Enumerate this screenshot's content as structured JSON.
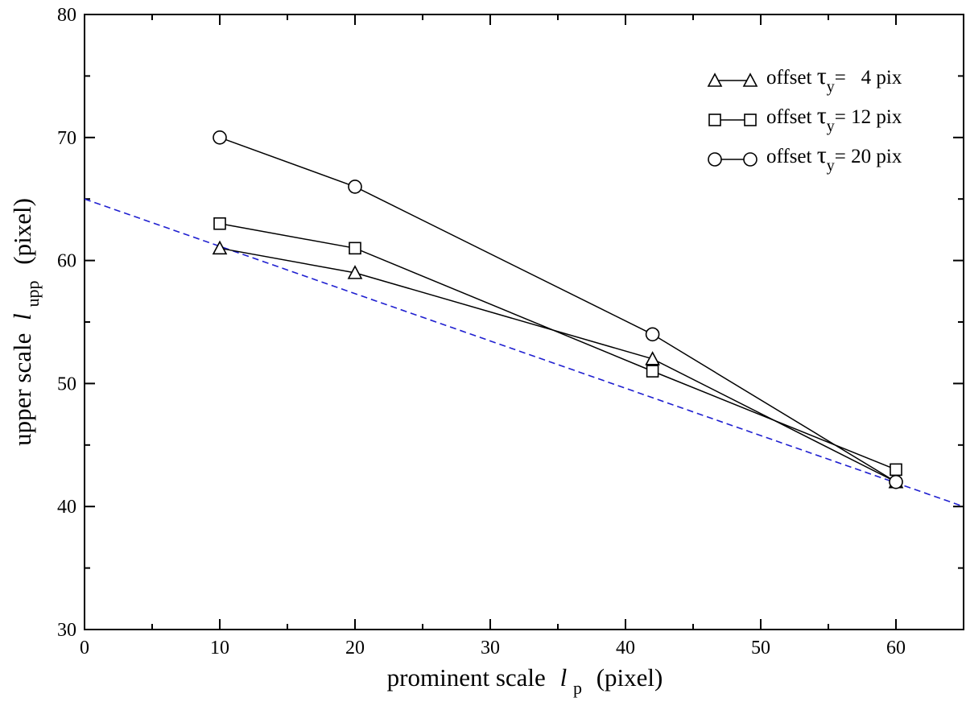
{
  "chart_data": {
    "type": "line",
    "xlabel": {
      "prefix": "prominent scale",
      "symbol": "l",
      "subscript": "p",
      "suffix": "(pixel)"
    },
    "ylabel": {
      "prefix": "upper scale",
      "symbol": "l",
      "subscript": "upp",
      "suffix": "(pixel)"
    },
    "xlim": [
      0,
      65
    ],
    "ylim": [
      30,
      80
    ],
    "x_ticks": [
      0,
      10,
      20,
      30,
      40,
      50,
      60
    ],
    "y_ticks": [
      30,
      40,
      50,
      60,
      70,
      80
    ],
    "x_minor_step": 5,
    "y_minor_step": 5,
    "grid": false,
    "legend_position": "top-right",
    "series": [
      {
        "name": "offset τy= 4 pix",
        "legend": {
          "prefix": "offset ",
          "tau": "τ",
          "sub": "y",
          "value": "=   4 pix"
        },
        "marker": "triangle",
        "color": "#000000",
        "x": [
          10,
          20,
          42,
          60
        ],
        "y": [
          61,
          59,
          52,
          42
        ]
      },
      {
        "name": "offset τy= 12 pix",
        "legend": {
          "prefix": "offset ",
          "tau": "τ",
          "sub": "y",
          "value": "= 12 pix"
        },
        "marker": "square",
        "color": "#000000",
        "x": [
          10,
          20,
          42,
          60
        ],
        "y": [
          63,
          61,
          51,
          43
        ]
      },
      {
        "name": "offset τy= 20 pix",
        "legend": {
          "prefix": "offset ",
          "tau": "τ",
          "sub": "y",
          "value": "= 20 pix"
        },
        "marker": "circle",
        "color": "#000000",
        "x": [
          10,
          20,
          42,
          60
        ],
        "y": [
          70,
          66,
          54,
          42
        ]
      }
    ],
    "reference_line": {
      "style": "dashed",
      "color": "#1f1fd0",
      "x": [
        0,
        65
      ],
      "y": [
        65,
        40
      ]
    }
  }
}
